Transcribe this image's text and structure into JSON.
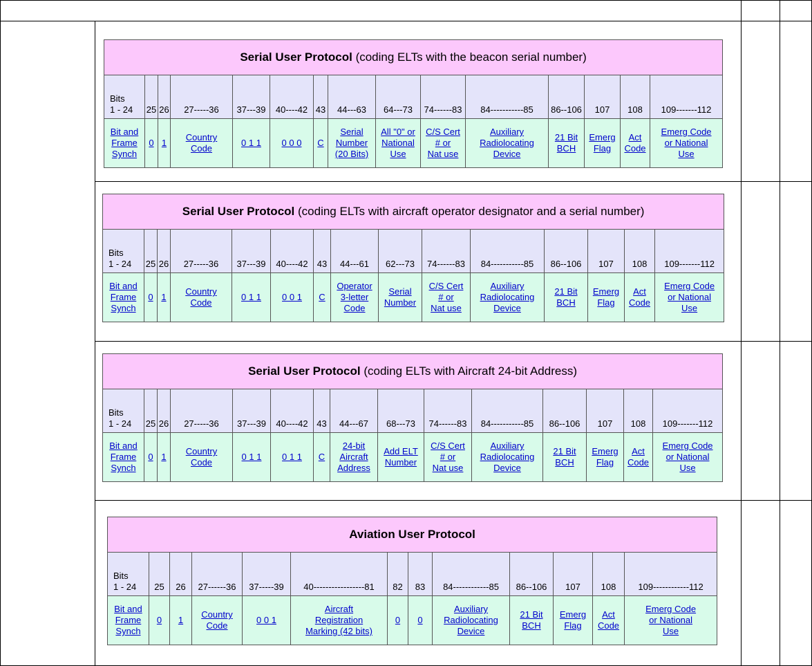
{
  "tables": [
    {
      "title": "Serial User Protocol",
      "subtitle": "(coding ELTs with the beacon serial number)",
      "bits": [
        "Bits\n1 - 24",
        "25",
        "26",
        "27-----36",
        "37---39",
        "40----42",
        "43",
        "44---63",
        "64---73",
        "74------83",
        "84-----------85",
        "86--106",
        "107",
        "108",
        "109-------112"
      ],
      "fields": [
        "Bit and\nFrame\nSynch",
        "0",
        "1",
        "Country\nCode",
        "0 1 1",
        "0 0 0",
        "C",
        "Serial\nNumber\n(20 Bits)",
        "All \"0\" or\nNational\nUse",
        "C/S Cert\n# or\nNat use",
        "Auxiliary\nRadiolocating\nDevice",
        "21 Bit\nBCH",
        "Emerg\nFlag",
        "Act\nCode",
        "Emerg Code\nor National\nUse"
      ]
    },
    {
      "title": "Serial User Protocol",
      "subtitle": "(coding ELTs with aircraft operator designator and a serial number)",
      "bits": [
        "Bits\n1 - 24",
        "25",
        "26",
        "27-----36",
        "37---39",
        "40----42",
        "43",
        "44---61",
        "62---73",
        "74------83",
        "84-----------85",
        "86--106",
        "107",
        "108",
        "109-------112"
      ],
      "fields": [
        "Bit and\nFrame\nSynch",
        "0",
        "1",
        "Country\nCode",
        "0 1 1",
        "0 0 1",
        "C",
        "Operator\n3-letter\nCode",
        "Serial\nNumber",
        "C/S Cert\n# or\nNat use",
        "Auxiliary\nRadiolocating\nDevice",
        "21 Bit\nBCH",
        "Emerg\nFlag",
        "Act\nCode",
        "Emerg Code\nor National\nUse"
      ]
    },
    {
      "title": "Serial User Protocol",
      "subtitle": "(coding ELTs with Aircraft 24-bit Address)",
      "bits": [
        "Bits\n1 - 24",
        "25",
        "26",
        "27-----36",
        "37---39",
        "40----42",
        "43",
        "44---67",
        "68---73",
        "74------83",
        "84-----------85",
        "86--106",
        "107",
        "108",
        "109-------112"
      ],
      "fields": [
        "Bit and\nFrame\nSynch",
        "0",
        "1",
        "Country\nCode",
        "0 1 1",
        "0 1 1",
        "C",
        "24-bit\nAircraft\nAddress",
        "Add ELT\nNumber",
        "C/S Cert\n# or\nNat use",
        "Auxiliary\nRadiolocating\nDevice",
        "21 Bit\nBCH",
        "Emerg\nFlag",
        "Act\nCode",
        "Emerg Code\nor National\nUse"
      ]
    },
    {
      "title": "Aviation User Protocol",
      "bits": [
        "Bits\n1 - 24",
        "25",
        "26",
        "27------36",
        "37-----39",
        "40-----------------81",
        "82",
        "83",
        "84------------85",
        "86--106",
        "107",
        "108",
        "109------------112"
      ],
      "fields": [
        "Bit and\nFrame\nSynch",
        "0",
        "1",
        "Country\nCode",
        "0 0 1",
        "Aircraft\nRegistration\nMarking (42 bits)",
        "0",
        "0",
        "Auxiliary\nRadiolocating\nDevice",
        "21 Bit\nBCH",
        "Emerg\nFlag",
        "Act\nCode",
        "Emerg Code\nor National\nUse"
      ]
    }
  ]
}
